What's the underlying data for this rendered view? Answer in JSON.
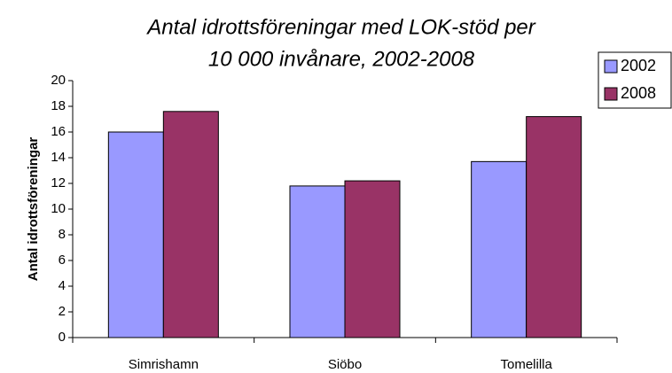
{
  "chart_data": {
    "type": "bar",
    "title": [
      "Antal idrottsföreningar med LOK-stöd per",
      "10 000 invånare, 2002-2008"
    ],
    "y_label": "Antal idrottsföreningar",
    "categories": [
      "Simrishamn",
      "Siöbo",
      "Tomelilla"
    ],
    "series": [
      {
        "name": "2002",
        "color": "#9999ff",
        "values": [
          16.0,
          11.8,
          13.7
        ]
      },
      {
        "name": "2008",
        "color": "#993366",
        "values": [
          17.6,
          12.2,
          17.2
        ]
      }
    ],
    "ylim": [
      0,
      20
    ],
    "yticks": [
      0,
      2,
      4,
      6,
      8,
      10,
      12,
      14,
      16,
      18,
      20
    ],
    "grid": false,
    "legend": "upper right"
  }
}
